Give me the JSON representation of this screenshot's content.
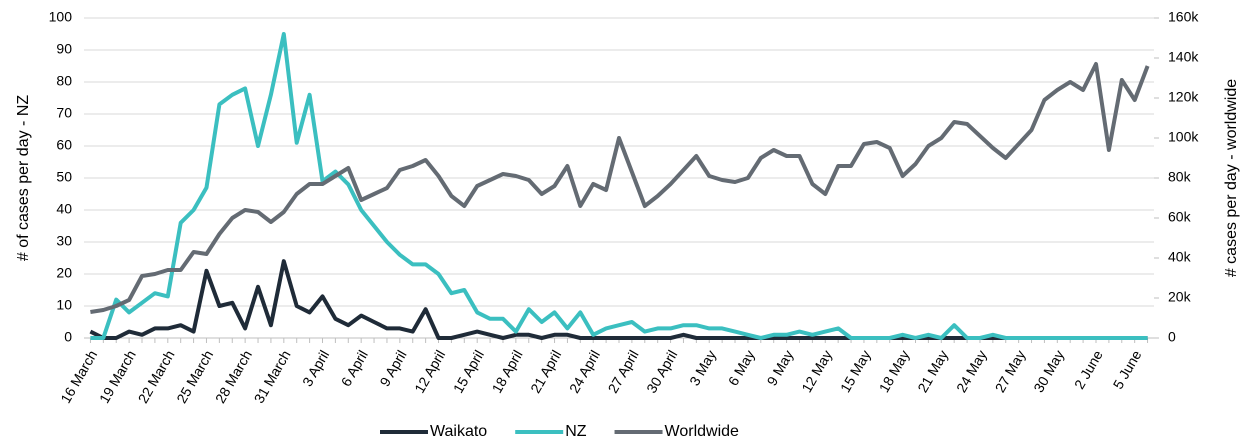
{
  "chart_data": {
    "type": "line",
    "categories": [
      "16 March",
      null,
      null,
      "19 March",
      null,
      null,
      "22 March",
      null,
      null,
      "25 March",
      null,
      null,
      "28 March",
      null,
      null,
      "31 March",
      null,
      null,
      "3 April",
      null,
      null,
      "6 April",
      null,
      null,
      "9 April",
      null,
      null,
      "12 April",
      null,
      null,
      "15 April",
      null,
      null,
      "18 April",
      null,
      null,
      "21 April",
      null,
      null,
      "24 April",
      null,
      null,
      "27 April",
      null,
      null,
      "30 April",
      null,
      null,
      "3 May",
      null,
      null,
      "6 May",
      null,
      null,
      "9 May",
      null,
      null,
      "12 May",
      null,
      null,
      "15 May",
      null,
      null,
      "18 May",
      null,
      null,
      "21 May",
      null,
      null,
      "24 May",
      null,
      null,
      "27 May",
      null,
      null,
      "30 May",
      null,
      null,
      "2 June",
      null,
      null,
      "5 June",
      null
    ],
    "ylabel": "# of cases per day - NZ",
    "y2label": "# cases per day - worldwide",
    "ylim": [
      0,
      100
    ],
    "yticks": [
      0,
      10,
      20,
      30,
      40,
      50,
      60,
      70,
      80,
      90,
      100
    ],
    "y2lim": [
      0,
      160000
    ],
    "y2ticks": [
      {
        "value": 0,
        "label": "0"
      },
      {
        "value": 20000,
        "label": "20k"
      },
      {
        "value": 40000,
        "label": "40k"
      },
      {
        "value": 60000,
        "label": "60k"
      },
      {
        "value": 80000,
        "label": "80k"
      },
      {
        "value": 100000,
        "label": "100k"
      },
      {
        "value": 120000,
        "label": "120k"
      },
      {
        "value": 140000,
        "label": "140k"
      },
      {
        "value": 160000,
        "label": "160k"
      }
    ],
    "grid": true,
    "legend": "bottom",
    "series": [
      {
        "name": "Waikato",
        "color": "#1f2b38",
        "values": [
          2,
          0,
          0,
          2,
          1,
          3,
          3,
          4,
          2,
          21,
          10,
          11,
          3,
          16,
          4,
          24,
          10,
          8,
          13,
          6,
          4,
          7,
          5,
          3,
          3,
          2,
          9,
          0,
          0,
          1,
          2,
          1,
          0,
          1,
          1,
          0,
          1,
          1,
          0,
          0,
          0,
          0,
          0,
          0,
          0,
          0,
          1,
          0,
          0,
          0,
          0,
          0,
          0,
          0,
          0,
          0,
          0,
          0,
          0,
          0,
          0,
          0,
          0,
          0,
          0,
          0,
          0,
          0,
          0,
          0,
          0,
          0,
          0,
          0,
          0,
          0,
          0,
          0,
          0,
          0,
          0,
          0,
          0
        ]
      },
      {
        "name": "NZ",
        "color": "#3bbfc0",
        "values": [
          0,
          0,
          12,
          8,
          11,
          14,
          13,
          36,
          40,
          47,
          73,
          76,
          78,
          60,
          76,
          95,
          61,
          76,
          49,
          52,
          48,
          40,
          35,
          30,
          26,
          23,
          23,
          20,
          14,
          15,
          8,
          6,
          6,
          2,
          9,
          5,
          8,
          3,
          8,
          1,
          3,
          4,
          5,
          2,
          3,
          3,
          4,
          4,
          3,
          3,
          2,
          1,
          0,
          1,
          1,
          2,
          1,
          2,
          3,
          0,
          0,
          0,
          0,
          1,
          0,
          1,
          0,
          4,
          0,
          0,
          1,
          0,
          0,
          0,
          0,
          0,
          0,
          0,
          0,
          0,
          0,
          0,
          0
        ]
      },
      {
        "name": "Worldwide",
        "color": "#646b73",
        "axis": "y2",
        "values": [
          13000,
          14000,
          16000,
          19000,
          31000,
          32000,
          34000,
          34000,
          43000,
          42000,
          52000,
          60000,
          64000,
          63000,
          58000,
          63000,
          72000,
          77000,
          77000,
          81000,
          85000,
          69000,
          72000,
          75000,
          84000,
          86000,
          89000,
          81000,
          71000,
          66000,
          76000,
          79000,
          82000,
          81000,
          79000,
          72000,
          76000,
          86000,
          66000,
          77000,
          74000,
          100000,
          83000,
          66000,
          71000,
          77000,
          84000,
          91000,
          81000,
          79000,
          78000,
          80000,
          90000,
          94000,
          91000,
          91000,
          77000,
          72000,
          86000,
          86000,
          97000,
          98000,
          95000,
          81000,
          87000,
          96000,
          100000,
          108000,
          107000,
          101000,
          95000,
          90000,
          97000,
          104000,
          119000,
          124000,
          128000,
          124000,
          137000,
          94000,
          129000,
          119000,
          136000
        ]
      }
    ]
  }
}
